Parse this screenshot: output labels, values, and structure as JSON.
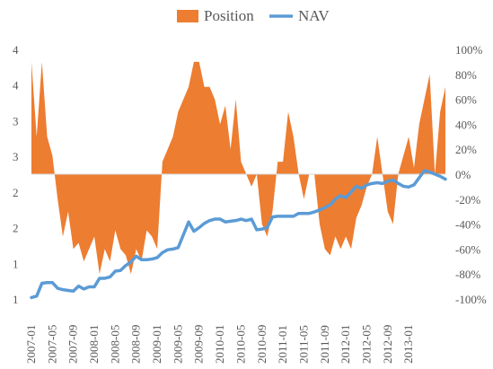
{
  "chart_data": {
    "type": "line+area",
    "title": "",
    "legend": {
      "placement": "top-center",
      "entries": [
        {
          "name": "Position",
          "color": "#ED7D31",
          "kind": "area"
        },
        {
          "name": "NAV",
          "color": "#5B9BD5",
          "kind": "line"
        }
      ]
    },
    "left_axis": {
      "ticks": [
        {
          "value": 1,
          "label": "1"
        },
        {
          "value": 1.5,
          "label": "1"
        },
        {
          "value": 2,
          "label": "2"
        },
        {
          "value": 2.5,
          "label": "2"
        },
        {
          "value": 3,
          "label": "3"
        },
        {
          "value": 3.5,
          "label": "3"
        },
        {
          "value": 4,
          "label": "4"
        },
        {
          "value": 4.5,
          "label": "4"
        }
      ],
      "ylim": [
        1,
        4.5
      ]
    },
    "right_axis": {
      "ticks": [
        "-100%",
        "-80%",
        "-60%",
        "-40%",
        "-20%",
        "0%",
        "20%",
        "40%",
        "60%",
        "80%",
        "100%"
      ],
      "ylim": [
        -1.0,
        1.0
      ]
    },
    "x_labels": [
      "2007-01",
      "2007-05",
      "2007-09",
      "2008-01",
      "2008-05",
      "2008-09",
      "2009-01",
      "2009-05",
      "2009-09",
      "2010-01",
      "2010-05",
      "2010-09",
      "2011-01",
      "2011-05",
      "2011-09",
      "2012-01",
      "2012-05",
      "2012-09",
      "2013-01"
    ],
    "x_start": "2007-01",
    "series": [
      {
        "name": "Position",
        "axis": "right",
        "color": "#ED7D31",
        "values": [
          0.9,
          0.3,
          0.9,
          0.3,
          0.15,
          -0.2,
          -0.5,
          -0.3,
          -0.6,
          -0.55,
          -0.7,
          -0.6,
          -0.5,
          -0.8,
          -0.6,
          -0.7,
          -0.45,
          -0.6,
          -0.65,
          -0.8,
          -0.6,
          -0.7,
          -0.45,
          -0.5,
          -0.6,
          0.1,
          0.2,
          0.3,
          0.5,
          0.6,
          0.7,
          0.9,
          0.9,
          0.7,
          0.7,
          0.6,
          0.4,
          0.55,
          0.2,
          0.6,
          0.1,
          0.0,
          -0.1,
          0.0,
          -0.4,
          -0.5,
          -0.3,
          0.1,
          0.1,
          0.5,
          0.3,
          0.0,
          -0.2,
          0.0,
          0.0,
          -0.4,
          -0.6,
          -0.65,
          -0.5,
          -0.6,
          -0.5,
          -0.6,
          -0.35,
          -0.25,
          -0.1,
          0.0,
          0.3,
          0.0,
          -0.3,
          -0.4,
          0.0,
          0.15,
          0.3,
          0.05,
          0.4,
          0.6,
          0.8,
          0.0,
          0.5,
          0.7
        ]
      },
      {
        "name": "NAV",
        "axis": "left",
        "color": "#5B9BD5",
        "values": [
          1.02,
          1.04,
          1.22,
          1.23,
          1.23,
          1.15,
          1.13,
          1.12,
          1.11,
          1.18,
          1.14,
          1.17,
          1.17,
          1.29,
          1.29,
          1.31,
          1.39,
          1.4,
          1.47,
          1.52,
          1.6,
          1.55,
          1.55,
          1.56,
          1.58,
          1.65,
          1.69,
          1.7,
          1.72,
          1.9,
          2.08,
          1.95,
          2.0,
          2.06,
          2.1,
          2.12,
          2.12,
          2.08,
          2.09,
          2.1,
          2.12,
          2.1,
          2.12,
          1.97,
          1.98,
          2.0,
          2.15,
          2.16,
          2.16,
          2.16,
          2.16,
          2.2,
          2.2,
          2.2,
          2.22,
          2.25,
          2.28,
          2.32,
          2.4,
          2.45,
          2.42,
          2.5,
          2.58,
          2.55,
          2.6,
          2.62,
          2.63,
          2.62,
          2.65,
          2.67,
          2.62,
          2.58,
          2.57,
          2.6,
          2.7,
          2.8,
          2.78,
          2.75,
          2.72,
          2.68
        ]
      }
    ]
  }
}
